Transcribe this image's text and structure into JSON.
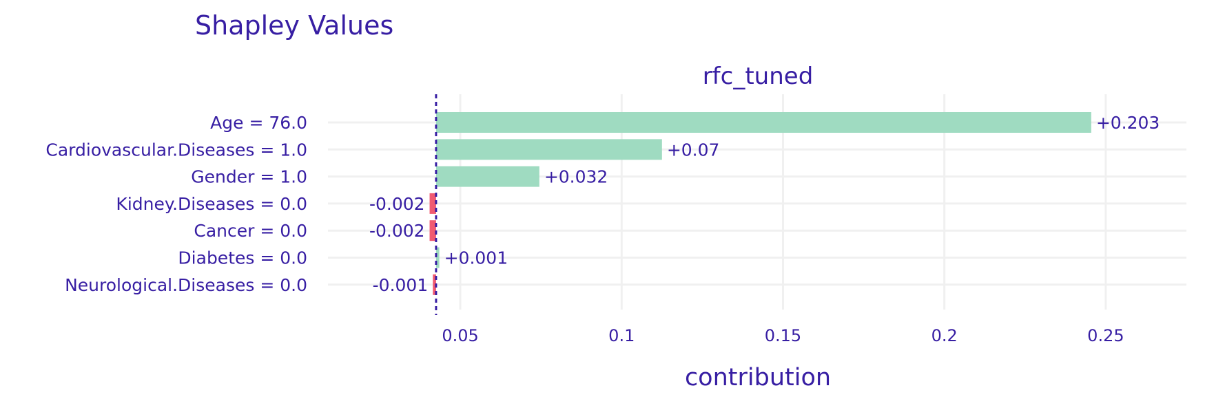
{
  "chart_data": {
    "type": "bar",
    "title": "Shapley Values",
    "subtitle": "rfc_tuned",
    "xlabel": "contribution",
    "baseline": 0.0425,
    "xlim": [
      0.009,
      0.275
    ],
    "xticks": [
      0.05,
      0.1,
      0.15,
      0.2,
      0.25
    ],
    "xtick_labels": [
      "0.05",
      "0.1",
      "0.15",
      "0.2",
      "0.25"
    ],
    "grid": true,
    "categories": [
      "Age = 76.0",
      "Cardiovascular.Diseases = 1.0",
      "Gender = 1.0",
      "Kidney.Diseases = 0.0",
      "Cancer = 0.0",
      "Diabetes = 0.0",
      "Neurological.Diseases = 0.0"
    ],
    "values": [
      0.203,
      0.07,
      0.032,
      -0.002,
      -0.002,
      0.001,
      -0.001
    ],
    "value_labels": [
      "+0.203",
      "+0.07",
      "+0.032",
      "-0.002",
      "-0.002",
      "+0.001",
      "-0.001"
    ],
    "colors": {
      "positive": "#9fdbc1",
      "negative": "#f05a71",
      "text": "#371ea3"
    }
  }
}
